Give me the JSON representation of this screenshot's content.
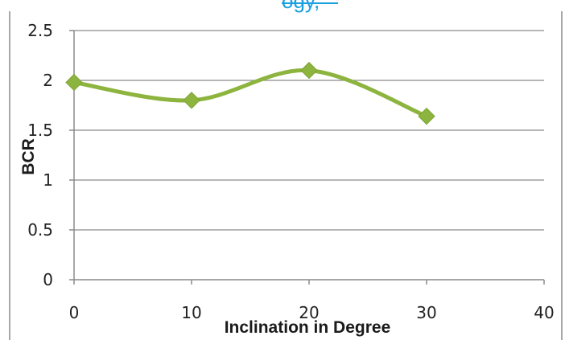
{
  "header_fragment": {
    "text": "ogy, ",
    "color": "#1aa0e0"
  },
  "chart_data": {
    "type": "line",
    "title": "",
    "xlabel": "Inclination in Degree",
    "ylabel": "BCR",
    "xlim": [
      0,
      40
    ],
    "ylim": [
      0,
      2.5
    ],
    "x_ticks": [
      "0",
      "10",
      "20",
      "30",
      "40"
    ],
    "y_ticks": [
      "0",
      "0.5",
      "1",
      "1.5",
      "2",
      "2.5"
    ],
    "grid": true,
    "smooth": true,
    "series": [
      {
        "x": [
          0,
          10,
          20,
          30
        ],
        "values": [
          1.98,
          1.8,
          2.1,
          1.64
        ],
        "color": "#8db43e",
        "marker": "diamond"
      }
    ]
  }
}
